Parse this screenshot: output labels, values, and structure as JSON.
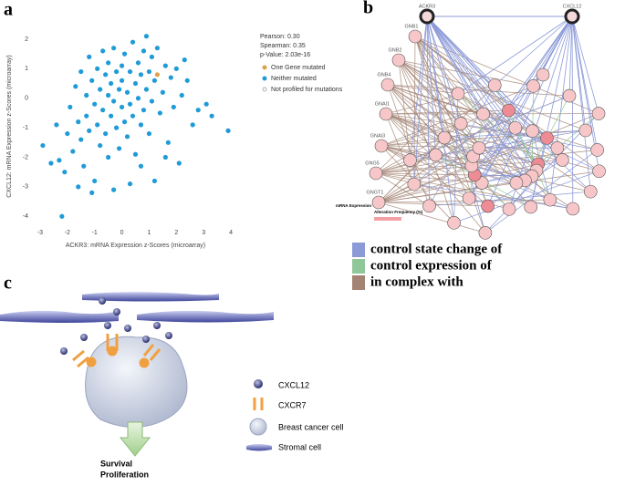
{
  "panel_labels": [
    "a",
    "b",
    "c"
  ],
  "chart_data": {
    "type": "scatter",
    "x_label": "ACKR3: mRNA Expression z-Scores (microarray)",
    "y_label": "CXCL12: mRNA Expression z-Scores (microarray)",
    "stats": [
      "Pearson: 0.30",
      "Spearman: 0.35",
      "p-Value: 2.03e-16"
    ],
    "xlim": [
      -3.3,
      4.3
    ],
    "xticks": [
      -3,
      -2,
      -1,
      0,
      1,
      2,
      3,
      4
    ],
    "ylim": [
      -4.3,
      2.4
    ],
    "yticks": [
      -4,
      -3,
      -2,
      -1,
      0,
      1,
      2
    ],
    "series": [
      {
        "name": "One Gene mutated",
        "color": "#e0a04a",
        "x": [
          1.3
        ],
        "values": [
          0.8
        ]
      },
      {
        "name": "Neither mutated",
        "color": "#1f9bd7",
        "x": [
          -2.9,
          -2.4,
          -2.3,
          -2.2,
          -2.1,
          -2.0,
          -1.9,
          -1.8,
          -1.7,
          -1.6,
          -1.5,
          -1.5,
          -1.4,
          -1.3,
          -1.3,
          -1.2,
          -1.2,
          -1.1,
          -1.0,
          -1.0,
          -0.9,
          -0.9,
          -0.8,
          -0.8,
          -0.7,
          -0.7,
          -0.6,
          -0.6,
          -0.5,
          -0.5,
          -0.5,
          -0.4,
          -0.4,
          -0.3,
          -0.3,
          -0.2,
          -0.2,
          -0.1,
          -0.1,
          0.0,
          0.0,
          0.0,
          0.1,
          0.1,
          0.2,
          0.2,
          0.3,
          0.3,
          0.4,
          0.4,
          0.5,
          0.5,
          0.6,
          0.6,
          0.7,
          0.7,
          0.8,
          0.8,
          0.9,
          0.9,
          1.0,
          1.0,
          1.1,
          1.1,
          1.2,
          1.2,
          1.3,
          1.4,
          1.5,
          1.6,
          1.7,
          1.8,
          1.9,
          2.0,
          2.1,
          2.2,
          2.4,
          2.6,
          2.8,
          3.1,
          3.3,
          3.9,
          -1.6,
          -1.1,
          0.3,
          1.6,
          -2.6,
          2.3,
          -0.3,
          0.7
        ],
        "values": [
          -1.6,
          -0.9,
          -2.1,
          -4.0,
          -2.5,
          -1.2,
          -0.3,
          -1.8,
          0.4,
          -0.8,
          -1.4,
          0.9,
          -2.3,
          0.1,
          -0.6,
          1.4,
          -1.1,
          0.6,
          -0.2,
          -2.8,
          1.0,
          -0.9,
          0.3,
          -1.6,
          1.6,
          -0.4,
          0.8,
          -1.2,
          0.1,
          1.2,
          -2.0,
          -0.6,
          0.5,
          1.7,
          -0.1,
          0.9,
          -1.0,
          0.3,
          -1.7,
          1.1,
          -0.3,
          0.6,
          -0.8,
          1.5,
          0.2,
          -1.3,
          0.9,
          -0.2,
          1.9,
          -0.6,
          0.5,
          -1.9,
          1.2,
          0.0,
          -0.9,
          0.8,
          1.6,
          -0.4,
          0.3,
          2.1,
          -1.2,
          0.9,
          -0.1,
          1.4,
          -2.8,
          0.6,
          1.7,
          -0.5,
          0.2,
          1.1,
          -1.5,
          0.7,
          -0.3,
          1.0,
          -2.2,
          0.1,
          0.6,
          -0.9,
          -0.4,
          -0.2,
          -0.6,
          -1.1,
          -3.0,
          -3.2,
          -2.9,
          -2.0,
          -2.2,
          1.3,
          -3.1,
          -2.3
        ]
      },
      {
        "name": "Not profiled for mutations",
        "color": "#b0b0b0",
        "x": [],
        "values": []
      }
    ]
  },
  "network": {
    "nodes": [
      "ACKR3",
      "CXCL12",
      "GNB1",
      "GNB2",
      "GNB4",
      "GNAI1",
      "GNAI3",
      "GNG5",
      "GNGT1"
    ],
    "legend": [
      {
        "label": "control state change of",
        "color": "#8c9ad8"
      },
      {
        "label": "control expression of",
        "color": "#8fc79a"
      },
      {
        "label": "in complex with",
        "color": "#a38373"
      }
    ],
    "small_legend": [
      "mRNA Expression",
      "Alteration Frequency (%)"
    ]
  },
  "diagram": {
    "legend": [
      "CXCL12",
      "CXCR7",
      "Breast cancer cell",
      "Stromal cell"
    ],
    "outcome": [
      "Survival",
      "Proliferation"
    ]
  }
}
